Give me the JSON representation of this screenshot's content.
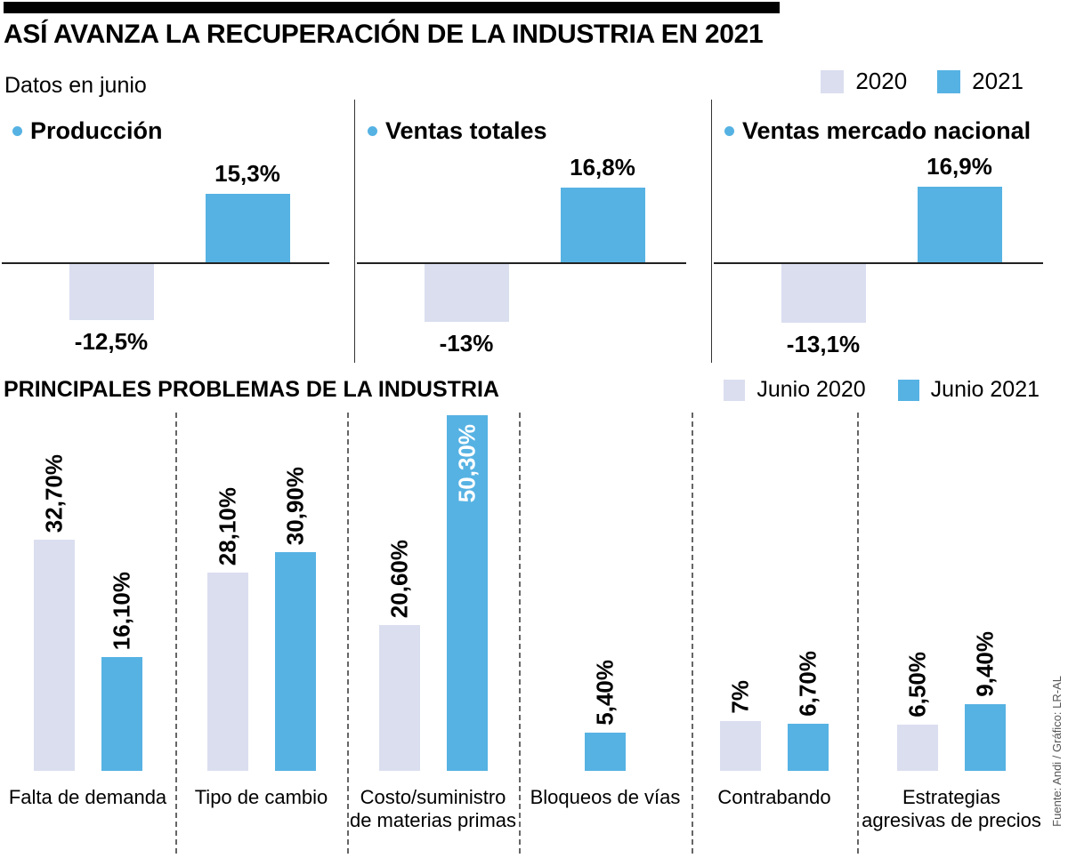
{
  "header": {
    "title": "ASÍ AVANZA LA RECUPERACIÓN DE LA INDUSTRIA EN 2021",
    "subtitle": "Datos en junio"
  },
  "colors": {
    "year2020": "#dadeef",
    "year2021": "#56b2e3"
  },
  "top_legend": [
    {
      "label": "2020",
      "color_key": "year2020"
    },
    {
      "label": "2021",
      "color_key": "year2021"
    }
  ],
  "problems_legend": [
    {
      "label": "Junio 2020",
      "color_key": "year2020"
    },
    {
      "label": "Junio 2021",
      "color_key": "year2021"
    }
  ],
  "source": "Fuente: Andi / Gráfico: LR-AL",
  "chart_data": [
    {
      "type": "bar",
      "title": "Producción",
      "categories": [
        "2020",
        "2021"
      ],
      "values": [
        -12.5,
        15.3
      ],
      "labels": [
        "-12,5%",
        "15,3%"
      ],
      "unit": "%"
    },
    {
      "type": "bar",
      "title": "Ventas totales",
      "categories": [
        "2020",
        "2021"
      ],
      "values": [
        -13,
        16.8
      ],
      "labels": [
        "-13%",
        "16,8%"
      ],
      "unit": "%"
    },
    {
      "type": "bar",
      "title": "Ventas mercado nacional",
      "categories": [
        "2020",
        "2021"
      ],
      "values": [
        -13.1,
        16.9
      ],
      "labels": [
        "-13,1%",
        "16,9%"
      ],
      "unit": "%"
    },
    {
      "type": "bar",
      "title": "PRINCIPALES PROBLEMAS DE LA INDUSTRIA",
      "categories": [
        "Falta de demanda",
        "Tipo de cambio",
        "Costo/suministro de materias primas",
        "Bloqueos de vías",
        "Contrabando",
        "Estrategias agresivas de precios"
      ],
      "series": [
        {
          "name": "Junio 2020",
          "values": [
            32.7,
            28.1,
            20.6,
            null,
            7,
            6.5
          ],
          "labels": [
            "32,70%",
            "28,10%",
            "20,60%",
            null,
            "7%",
            "6,50%"
          ]
        },
        {
          "name": "Junio 2021",
          "values": [
            16.1,
            30.9,
            50.3,
            5.4,
            6.7,
            9.4
          ],
          "labels": [
            "16,10%",
            "30,90%",
            "50,30%",
            "5,40%",
            "6,70%",
            "9,40%"
          ]
        }
      ],
      "ylim": [
        0,
        51
      ],
      "unit": "%",
      "legend_position": "top-right",
      "grid": false
    }
  ]
}
